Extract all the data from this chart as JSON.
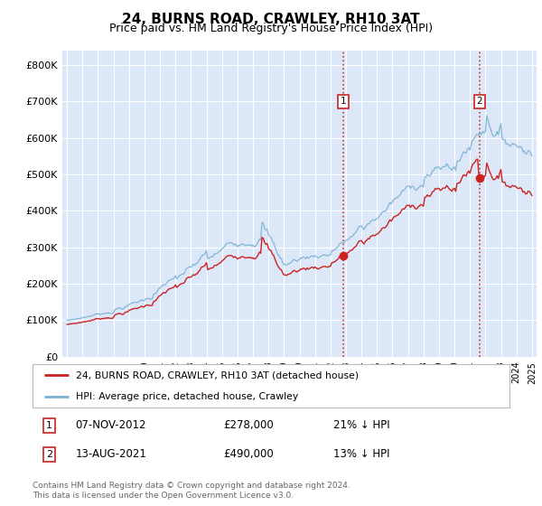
{
  "title": "24, BURNS ROAD, CRAWLEY, RH10 3AT",
  "subtitle": "Price paid vs. HM Land Registry's House Price Index (HPI)",
  "background_color": "#dce8f8",
  "ytick_labels": [
    "£0",
    "£100K",
    "£200K",
    "£300K",
    "£400K",
    "£500K",
    "£600K",
    "£700K",
    "£800K"
  ],
  "yticks": [
    0,
    100000,
    200000,
    300000,
    400000,
    500000,
    600000,
    700000,
    800000
  ],
  "xmin": 1994.7,
  "xmax": 2025.3,
  "ymin": 0,
  "ymax": 840000,
  "legend_entries": [
    "24, BURNS ROAD, CRAWLEY, RH10 3AT (detached house)",
    "HPI: Average price, detached house, Crawley"
  ],
  "sale1_date": "07-NOV-2012",
  "sale1_price": "£278,000",
  "sale1_pct": "21% ↓ HPI",
  "sale1_year": 2012.85,
  "sale1_price_val": 278000,
  "sale2_date": "13-AUG-2021",
  "sale2_price": "£490,000",
  "sale2_pct": "13% ↓ HPI",
  "sale2_year": 2021.62,
  "sale2_price_val": 490000,
  "footer": "Contains HM Land Registry data © Crown copyright and database right 2024.\nThis data is licensed under the Open Government Licence v3.0."
}
